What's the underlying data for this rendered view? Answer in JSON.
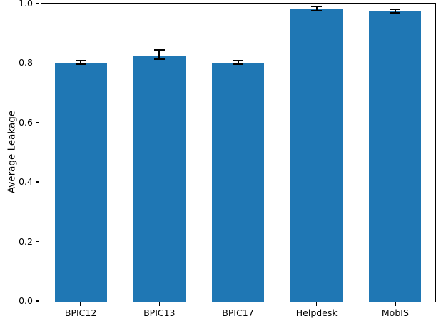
{
  "figure": {
    "background": "#ffffff"
  },
  "chart_data": {
    "type": "bar",
    "title": "",
    "categories": [
      "BPIC12",
      "BPIC13",
      "BPIC17",
      "Helpdesk",
      "MobIS"
    ],
    "values": [
      0.803,
      0.828,
      0.801,
      0.983,
      0.975
    ],
    "errors": [
      0.006,
      0.016,
      0.006,
      0.007,
      0.007
    ],
    "xlabel": "",
    "ylabel": "Average Leakage",
    "ylim": [
      0.0,
      1.0
    ],
    "yticks": [
      0.0,
      0.2,
      0.4,
      0.6,
      0.8,
      1.0
    ],
    "ytick_labels": [
      "0.0",
      "0.2",
      "0.4",
      "0.6",
      "0.8",
      "1.0"
    ],
    "grid": false,
    "legend_position": "none",
    "bar_color": "#1f77b4",
    "error_bar_color": "#000000",
    "axis_color": "#000000",
    "bar_width_fraction": 0.66
  }
}
